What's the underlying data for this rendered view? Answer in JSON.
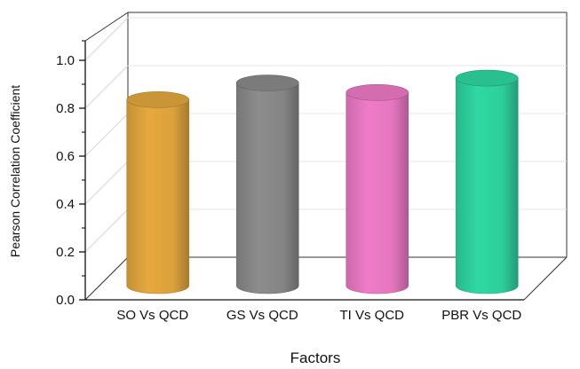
{
  "chart_data": {
    "type": "bar",
    "style": "3d-cylinder",
    "categories": [
      "SO Vs QCD",
      "GS Vs QCD",
      "TI Vs QCD",
      "PBR Vs QCD"
    ],
    "values": [
      0.88,
      0.95,
      0.91,
      0.97
    ],
    "colors": [
      "#e6a93e",
      "#8c8c8c",
      "#f07cc8",
      "#2fd9a2"
    ],
    "xlabel": "Factors",
    "ylabel": "Pearson Correlation Coefficient",
    "ylim": [
      0.0,
      1.0
    ],
    "yticks": [
      "0.0",
      "0.2",
      "0.4",
      "0.6",
      "0.8",
      "1.0"
    ],
    "grid": true
  }
}
